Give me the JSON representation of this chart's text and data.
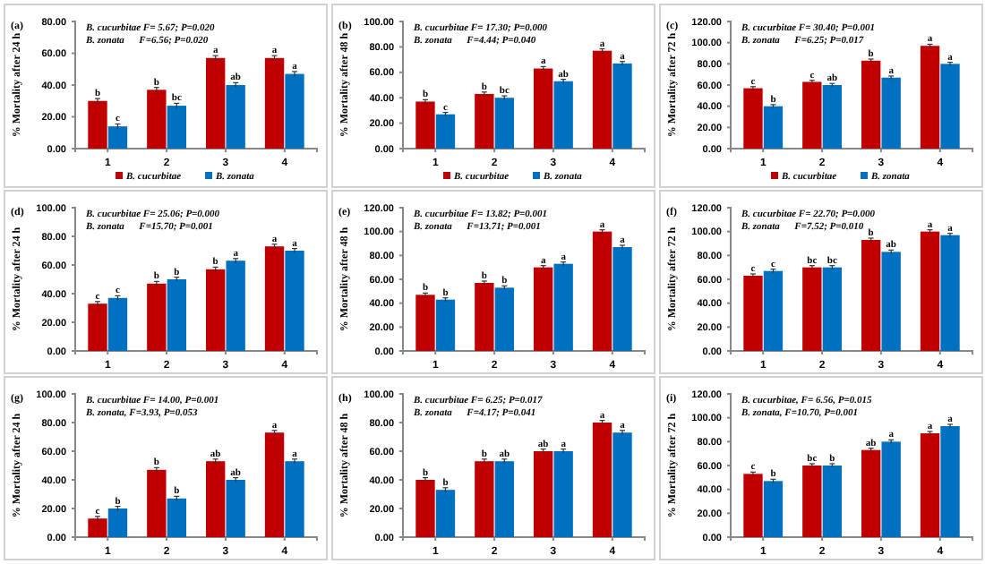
{
  "chart_data": [
    {
      "type": "bar",
      "title": "(a)",
      "ylabel": "% Mortality after 24 h",
      "categories": [
        "1",
        "2",
        "3",
        "4"
      ],
      "ylim": [
        0,
        80
      ],
      "yticks": [
        {
          "value": 0,
          "label": "0.00"
        },
        {
          "value": 20,
          "label": "20.00"
        },
        {
          "value": 40,
          "label": "40.00"
        },
        {
          "value": 60,
          "label": "60.00"
        },
        {
          "value": 80,
          "label": "80.00"
        }
      ],
      "legend": "bottom",
      "grid": false,
      "series": [
        {
          "name": "B. cucurbitae",
          "color": "#c00000",
          "values": [
            30,
            37,
            57,
            57
          ],
          "errors": [
            1.5,
            1.5,
            1.5,
            1.5
          ]
        },
        {
          "name": "B. zonata",
          "color": "#0070c0",
          "values": [
            14,
            27,
            40,
            47
          ],
          "errors": [
            1.5,
            1.5,
            1.5,
            1.5
          ]
        }
      ],
      "annotations": [
        "B. cucurbitae F= 5.67; P=0.020",
        "B. zonata      F=6.56; P=0.020",
        {
          "text": "b",
          "x": "1",
          "y": 30
        },
        {
          "text": "c",
          "x": "1",
          "y": 14
        },
        {
          "text": "b",
          "x": "2",
          "y": 37
        },
        {
          "text": "bc",
          "x": "2",
          "y": 27
        },
        {
          "text": "a",
          "x": "3",
          "y": 57
        },
        {
          "text": "ab",
          "x": "3",
          "y": 40
        },
        {
          "text": "a",
          "x": "4",
          "y": 57
        },
        {
          "text": "a",
          "x": "4",
          "y": 47
        }
      ]
    },
    {
      "type": "bar",
      "title": "(b)",
      "ylabel": "% Mortality after 48 h",
      "categories": [
        "1",
        "2",
        "3",
        "4"
      ],
      "ylim": [
        0,
        100
      ],
      "yticks": [
        {
          "value": 0,
          "label": "0.00"
        },
        {
          "value": 20,
          "label": "20.00"
        },
        {
          "value": 40,
          "label": "40.00"
        },
        {
          "value": 60,
          "label": "60.00"
        },
        {
          "value": 80,
          "label": "80.00"
        },
        {
          "value": 100,
          "label": "100.00"
        }
      ],
      "legend": "bottom",
      "grid": false,
      "series": [
        {
          "name": "B. cucurbitae",
          "color": "#c00000",
          "values": [
            37,
            43,
            63,
            77
          ],
          "errors": [
            1.5,
            1.5,
            1.5,
            1.5
          ]
        },
        {
          "name": "B. zonata",
          "color": "#0070c0",
          "values": [
            27,
            40,
            53,
            67
          ],
          "errors": [
            1.5,
            1.5,
            1.5,
            1.5
          ]
        }
      ],
      "annotations": [
        "B. cucurbitae F= 17.30; P=0.000",
        "B. zonata      F=4.44; P=0.040",
        {
          "text": "b",
          "x": "1",
          "y": 37
        },
        {
          "text": "c",
          "x": "1",
          "y": 27
        },
        {
          "text": "b",
          "x": "2",
          "y": 43
        },
        {
          "text": "bc",
          "x": "2",
          "y": 40
        },
        {
          "text": "a",
          "x": "3",
          "y": 63
        },
        {
          "text": "ab",
          "x": "3",
          "y": 53
        },
        {
          "text": "a",
          "x": "4",
          "y": 77
        },
        {
          "text": "a",
          "x": "4",
          "y": 67
        }
      ]
    },
    {
      "type": "bar",
      "title": "(c)",
      "ylabel": "% Mortality after 72 h",
      "categories": [
        "1",
        "2",
        "3",
        "4"
      ],
      "ylim": [
        0,
        120
      ],
      "yticks": [
        {
          "value": 0,
          "label": "0.00"
        },
        {
          "value": 20,
          "label": "20.00"
        },
        {
          "value": 40,
          "label": "40.00"
        },
        {
          "value": 60,
          "label": "60.00"
        },
        {
          "value": 80,
          "label": "80.00"
        },
        {
          "value": 100,
          "label": "100.00"
        },
        {
          "value": 120,
          "label": "120.00"
        }
      ],
      "legend": "bottom",
      "grid": false,
      "series": [
        {
          "name": "B. cucurbitae",
          "color": "#c00000",
          "values": [
            57,
            63,
            83,
            97
          ],
          "errors": [
            1.5,
            1.5,
            1.5,
            1.5
          ]
        },
        {
          "name": "B. zonata",
          "color": "#0070c0",
          "values": [
            40,
            60,
            67,
            80
          ],
          "errors": [
            1.5,
            1.5,
            1.5,
            1.5
          ]
        }
      ],
      "annotations": [
        "B. cucurbitae F= 30.40; P=0.001",
        "B. zonata      F=6.25; P=0.017",
        {
          "text": "c",
          "x": "1",
          "y": 57
        },
        {
          "text": "b",
          "x": "1",
          "y": 40
        },
        {
          "text": "c",
          "x": "2",
          "y": 63
        },
        {
          "text": "ab",
          "x": "2",
          "y": 60
        },
        {
          "text": "b",
          "x": "3",
          "y": 83
        },
        {
          "text": "a",
          "x": "3",
          "y": 67
        },
        {
          "text": "a",
          "x": "4",
          "y": 97
        },
        {
          "text": "a",
          "x": "4",
          "y": 80
        }
      ]
    },
    {
      "type": "bar",
      "title": "(d)",
      "ylabel": "% Mortality after 24 h",
      "categories": [
        "1",
        "2",
        "3",
        "4"
      ],
      "ylim": [
        0,
        100
      ],
      "yticks": [
        {
          "value": 0,
          "label": "0.00"
        },
        {
          "value": 20,
          "label": "20.00"
        },
        {
          "value": 40,
          "label": "40.00"
        },
        {
          "value": 60,
          "label": "60.00"
        },
        {
          "value": 80,
          "label": "80.00"
        },
        {
          "value": 100,
          "label": "100.00"
        }
      ],
      "grid": false,
      "series": [
        {
          "color": "#c00000",
          "values": [
            33,
            47,
            57,
            73
          ],
          "errors": [
            1.5,
            1.5,
            1.5,
            1.5
          ]
        },
        {
          "color": "#0070c0",
          "values": [
            37,
            50,
            63,
            70
          ],
          "errors": [
            1.5,
            1.5,
            1.5,
            1.5
          ]
        }
      ],
      "annotations": [
        "B. cucurbitae F= 25.06; P=0.000",
        "B. zonata      F=15.70; P=0.001",
        {
          "text": "c",
          "x": "1",
          "y": 33
        },
        {
          "text": "c",
          "x": "1",
          "y": 37
        },
        {
          "text": "b",
          "x": "2",
          "y": 47
        },
        {
          "text": "b",
          "x": "2",
          "y": 50
        },
        {
          "text": "b",
          "x": "3",
          "y": 57
        },
        {
          "text": "a",
          "x": "3",
          "y": 63
        },
        {
          "text": "a",
          "x": "4",
          "y": 73
        },
        {
          "text": "a",
          "x": "4",
          "y": 70
        }
      ]
    },
    {
      "type": "bar",
      "title": "(e)",
      "ylabel": "% Mortality after 48 h",
      "categories": [
        "1",
        "2",
        "3",
        "4"
      ],
      "ylim": [
        0,
        120
      ],
      "yticks": [
        {
          "value": 0,
          "label": "0.00"
        },
        {
          "value": 20,
          "label": "20.00"
        },
        {
          "value": 40,
          "label": "40.00"
        },
        {
          "value": 60,
          "label": "60.00"
        },
        {
          "value": 80,
          "label": "80.00"
        },
        {
          "value": 100,
          "label": "100.00"
        },
        {
          "value": 120,
          "label": "120.00"
        }
      ],
      "grid": false,
      "series": [
        {
          "color": "#c00000",
          "values": [
            47,
            57,
            70,
            100
          ],
          "errors": [
            1.5,
            1.5,
            1.5,
            1.5
          ]
        },
        {
          "color": "#0070c0",
          "values": [
            43,
            53,
            73,
            87
          ],
          "errors": [
            1.5,
            1.5,
            1.5,
            1.5
          ]
        }
      ],
      "annotations": [
        "B. cucurbitae F= 13.82; P=0.001",
        "B. zonata      F=13.71; P=0.001",
        {
          "text": "b",
          "x": "1",
          "y": 47
        },
        {
          "text": "b",
          "x": "1",
          "y": 43
        },
        {
          "text": "b",
          "x": "2",
          "y": 57
        },
        {
          "text": "b",
          "x": "2",
          "y": 53
        },
        {
          "text": "a",
          "x": "3",
          "y": 70
        },
        {
          "text": "a",
          "x": "3",
          "y": 73
        },
        {
          "text": "a",
          "x": "4",
          "y": 100
        },
        {
          "text": "a",
          "x": "4",
          "y": 87
        }
      ]
    },
    {
      "type": "bar",
      "title": "(f)",
      "ylabel": "% Mortality after 72 h",
      "categories": [
        "1",
        "2",
        "3",
        "4"
      ],
      "ylim": [
        0,
        120
      ],
      "yticks": [
        {
          "value": 0,
          "label": "0.00"
        },
        {
          "value": 20,
          "label": "20.00"
        },
        {
          "value": 40,
          "label": "40.00"
        },
        {
          "value": 60,
          "label": "60.00"
        },
        {
          "value": 80,
          "label": "80.00"
        },
        {
          "value": 100,
          "label": "100.00"
        },
        {
          "value": 120,
          "label": "120.00"
        }
      ],
      "grid": false,
      "series": [
        {
          "color": "#c00000",
          "values": [
            63,
            70,
            93,
            100
          ],
          "errors": [
            1.5,
            1.5,
            1.5,
            1.5
          ]
        },
        {
          "color": "#0070c0",
          "values": [
            67,
            70,
            83,
            97
          ],
          "errors": [
            1.5,
            1.5,
            1.5,
            1.5
          ]
        }
      ],
      "annotations": [
        "B. cucurbitae F= 22.70; P=0.000",
        "B. zonata      F=7.52; P=0.010",
        {
          "text": "c",
          "x": "1",
          "y": 63
        },
        {
          "text": "c",
          "x": "1",
          "y": 67
        },
        {
          "text": "bc",
          "x": "2",
          "y": 70
        },
        {
          "text": "bc",
          "x": "2",
          "y": 70
        },
        {
          "text": "b",
          "x": "3",
          "y": 93
        },
        {
          "text": "ab",
          "x": "3",
          "y": 83
        },
        {
          "text": "a",
          "x": "4",
          "y": 100
        },
        {
          "text": "a",
          "x": "4",
          "y": 97
        }
      ]
    },
    {
      "type": "bar",
      "title": "(g)",
      "ylabel": "% Mortality after 24 h",
      "categories": [
        "1",
        "2",
        "3",
        "4"
      ],
      "ylim": [
        0,
        100
      ],
      "yticks": [
        {
          "value": 0,
          "label": "0.00"
        },
        {
          "value": 20,
          "label": "20.00"
        },
        {
          "value": 40,
          "label": "40.00"
        },
        {
          "value": 60,
          "label": "60.00"
        },
        {
          "value": 80,
          "label": "80.00"
        },
        {
          "value": 100,
          "label": "100.00"
        }
      ],
      "grid": false,
      "series": [
        {
          "color": "#c00000",
          "values": [
            13,
            47,
            53,
            73
          ],
          "errors": [
            1.5,
            1.5,
            1.5,
            1.5
          ]
        },
        {
          "color": "#0070c0",
          "values": [
            20,
            27,
            40,
            53
          ],
          "errors": [
            1.5,
            1.5,
            1.5,
            1.5
          ]
        }
      ],
      "annotations": [
        "B. cucurbitae F= 14.00, P=0.001",
        "B. zonata, F=3.93, P=0.053",
        {
          "text": "c",
          "x": "1",
          "y": 13
        },
        {
          "text": "b",
          "x": "1",
          "y": 20
        },
        {
          "text": "b",
          "x": "2",
          "y": 47
        },
        {
          "text": "b",
          "x": "2",
          "y": 27
        },
        {
          "text": "ab",
          "x": "3",
          "y": 53
        },
        {
          "text": "ab",
          "x": "3",
          "y": 40
        },
        {
          "text": "a",
          "x": "4",
          "y": 73
        },
        {
          "text": "a",
          "x": "4",
          "y": 53
        }
      ]
    },
    {
      "type": "bar",
      "title": "(h)",
      "ylabel": "% Mortality after 48 h",
      "categories": [
        "1",
        "2",
        "3",
        "4"
      ],
      "ylim": [
        0,
        100
      ],
      "yticks": [
        {
          "value": 0,
          "label": "0.00"
        },
        {
          "value": 20,
          "label": "20.00"
        },
        {
          "value": 40,
          "label": "40.00"
        },
        {
          "value": 60,
          "label": "60.00"
        },
        {
          "value": 80,
          "label": "80.00"
        },
        {
          "value": 100,
          "label": "100.00"
        }
      ],
      "grid": false,
      "series": [
        {
          "color": "#c00000",
          "values": [
            40,
            53,
            60,
            80
          ],
          "errors": [
            1.5,
            1.5,
            1.5,
            1.5
          ]
        },
        {
          "color": "#0070c0",
          "values": [
            33,
            53,
            60,
            73
          ],
          "errors": [
            1.5,
            1.5,
            1.5,
            1.5
          ]
        }
      ],
      "annotations": [
        "B. cucurbitae F= 6.25; P=0.017",
        "B. zonata      F=4.17; P=0.041",
        {
          "text": "b",
          "x": "1",
          "y": 40
        },
        {
          "text": "b",
          "x": "1",
          "y": 33
        },
        {
          "text": "b",
          "x": "2",
          "y": 53
        },
        {
          "text": "ab",
          "x": "2",
          "y": 53
        },
        {
          "text": "ab",
          "x": "3",
          "y": 60
        },
        {
          "text": "a",
          "x": "3",
          "y": 60
        },
        {
          "text": "a",
          "x": "4",
          "y": 80
        },
        {
          "text": "a",
          "x": "4",
          "y": 73
        }
      ]
    },
    {
      "type": "bar",
      "title": "(i)",
      "ylabel": "% Mortality after 72 h",
      "categories": [
        "1",
        "2",
        "3",
        "4"
      ],
      "ylim": [
        0,
        120
      ],
      "yticks": [
        {
          "value": 0,
          "label": "0.00"
        },
        {
          "value": 20,
          "label": "20.00"
        },
        {
          "value": 40,
          "label": "40.00"
        },
        {
          "value": 60,
          "label": "60.00"
        },
        {
          "value": 80,
          "label": "80.00"
        },
        {
          "value": 100,
          "label": "100.00"
        },
        {
          "value": 120,
          "label": "120.00"
        }
      ],
      "grid": false,
      "series": [
        {
          "color": "#c00000",
          "values": [
            53,
            60,
            73,
            87
          ],
          "errors": [
            1.5,
            1.5,
            1.5,
            1.5
          ]
        },
        {
          "color": "#0070c0",
          "values": [
            47,
            60,
            80,
            93
          ],
          "errors": [
            1.5,
            1.5,
            1.5,
            1.5
          ]
        }
      ],
      "annotations": [
        "B. cucurbitae, F= 6.56, P=0.015",
        "B. zonata, F=10.70, P=0.001",
        {
          "text": "c",
          "x": "1",
          "y": 53
        },
        {
          "text": "b",
          "x": "1",
          "y": 47
        },
        {
          "text": "bc",
          "x": "2",
          "y": 60
        },
        {
          "text": "b",
          "x": "2",
          "y": 60
        },
        {
          "text": "ab",
          "x": "3",
          "y": 73
        },
        {
          "text": "a",
          "x": "3",
          "y": 80
        },
        {
          "text": "a",
          "x": "4",
          "y": 87
        },
        {
          "text": "a",
          "x": "4",
          "y": 93
        }
      ]
    }
  ]
}
